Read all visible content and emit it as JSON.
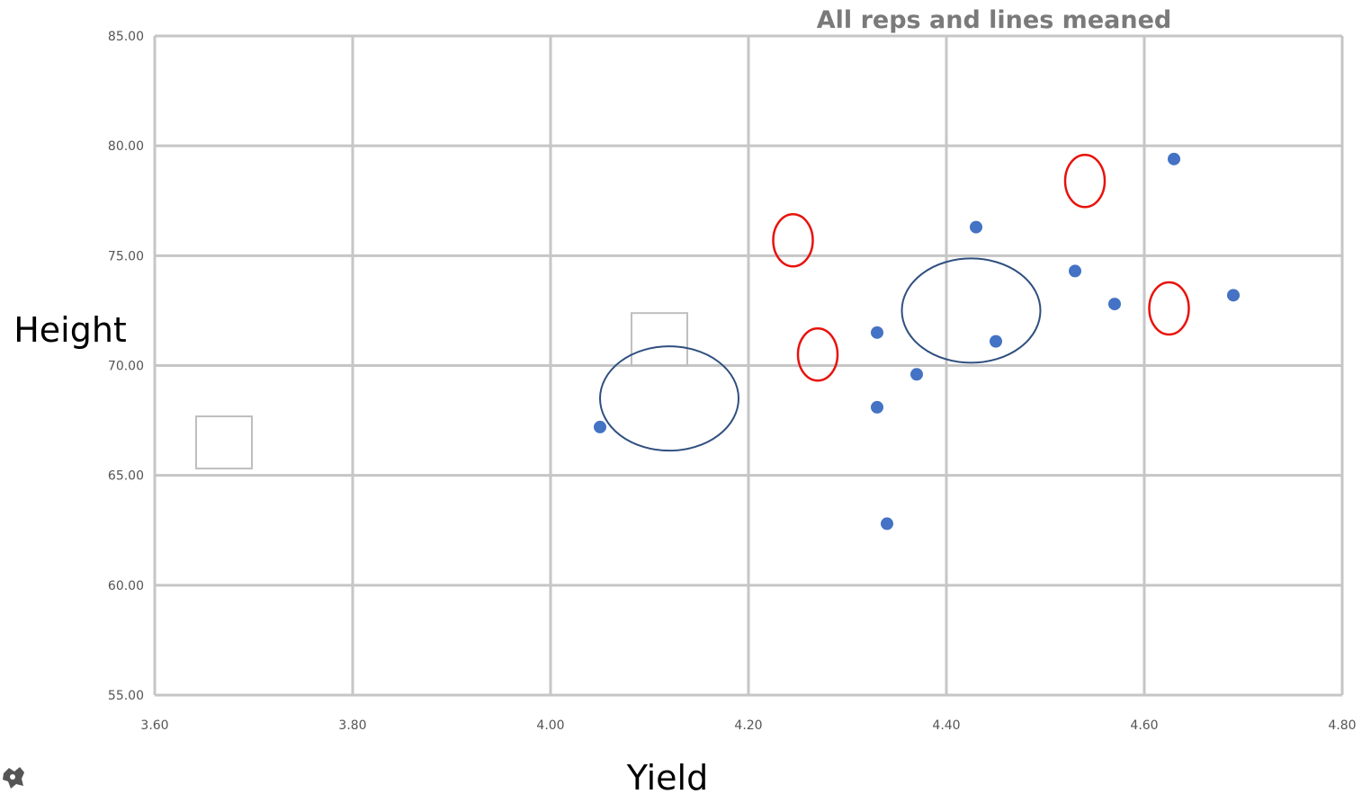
{
  "chart_data": {
    "type": "scatter",
    "title": "All reps and lines meaned",
    "xlabel": "Yield",
    "ylabel": "Height",
    "xlim": [
      3.6,
      4.8
    ],
    "ylim": [
      55,
      85
    ],
    "x_ticks": [
      "3.60",
      "3.80",
      "4.00",
      "4.20",
      "4.40",
      "4.60",
      "4.80"
    ],
    "y_ticks": [
      "55.00",
      "60.00",
      "65.00",
      "70.00",
      "75.00",
      "80.00",
      "85.00"
    ],
    "grid": true,
    "legend": "none",
    "series": [
      {
        "color": "#4472c4",
        "points": [
          {
            "x": 4.05,
            "y": 67.2
          },
          {
            "x": 4.33,
            "y": 68.1
          },
          {
            "x": 4.33,
            "y": 71.5
          },
          {
            "x": 4.34,
            "y": 62.8
          },
          {
            "x": 4.37,
            "y": 69.6
          },
          {
            "x": 4.43,
            "y": 76.3
          },
          {
            "x": 4.45,
            "y": 71.1
          },
          {
            "x": 4.53,
            "y": 74.3
          },
          {
            "x": 4.57,
            "y": 72.8
          },
          {
            "x": 4.63,
            "y": 79.4
          },
          {
            "x": 4.69,
            "y": 73.2
          }
        ]
      }
    ],
    "annotations": {
      "red_ellipses": [
        {
          "x": 4.245,
          "y": 75.7
        },
        {
          "x": 4.27,
          "y": 70.5
        },
        {
          "x": 4.54,
          "y": 78.4
        },
        {
          "x": 4.625,
          "y": 72.6
        }
      ],
      "blue_ellipses": [
        {
          "x": 4.12,
          "y": 68.5
        },
        {
          "x": 4.425,
          "y": 72.5
        }
      ],
      "empty_squares": [
        {
          "x": 3.67,
          "y": 66.5
        },
        {
          "x": 4.11,
          "y": 71.2
        }
      ],
      "colors": {
        "red": "#e8120c",
        "blue": "#2f4f7f",
        "square": "#bfbfbf"
      }
    }
  }
}
